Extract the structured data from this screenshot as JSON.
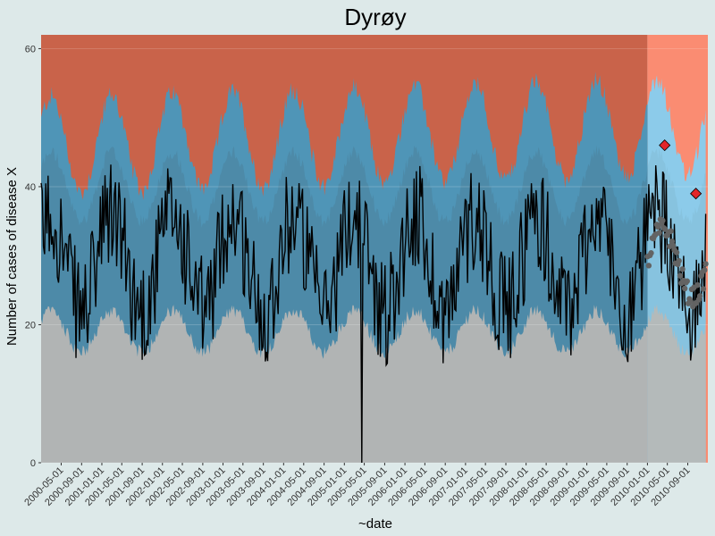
{
  "chart_data": {
    "type": "area",
    "title": "Dyrøy",
    "xlabel": "~date",
    "ylabel": "Number of cases of disease X",
    "y_ticks": [
      0,
      20,
      40,
      60
    ],
    "ylim": [
      0,
      62
    ],
    "xlim": [
      "2000-01-01",
      "2010-12-31"
    ],
    "x_tick_labels": [
      "2000-05-01",
      "2000-09-01",
      "2001-01-01",
      "2001-05-01",
      "2001-09-01",
      "2002-01-01",
      "2002-05-01",
      "2002-09-01",
      "2003-01-01",
      "2003-05-01",
      "2003-09-01",
      "2004-01-01",
      "2004-05-01",
      "2004-09-01",
      "2005-01-01",
      "2005-05-01",
      "2005-09-01",
      "2006-01-01",
      "2006-05-01",
      "2006-09-01",
      "2007-01-01",
      "2007-05-01",
      "2007-09-01",
      "2008-01-01",
      "2008-05-01",
      "2008-09-01",
      "2009-01-01",
      "2009-05-01",
      "2009-09-01",
      "2010-01-01",
      "2010-05-01",
      "2010-09-01"
    ],
    "train_test_split": "2010-01-01",
    "background": "#dde9e9",
    "grid": true,
    "bands": {
      "upper_region_color_train": "#c9634a",
      "upper_region_color_test": "#fa8c72",
      "upper_band_color_train": "#4f95b7",
      "upper_band_color_test": "#8ccbea",
      "mid_band_color_train": "#4d8aa8",
      "mid_band_color_test": "#87c3df",
      "lower_region_color": "#b1b4b4"
    },
    "alarms": [
      {
        "date": "2010-04-15",
        "value": 46
      },
      {
        "date": "2010-10-20",
        "value": 39
      }
    ],
    "alarm_color": "#e2262a",
    "series_colors": {
      "observed": "#000000",
      "expected_test": "#636363"
    }
  }
}
